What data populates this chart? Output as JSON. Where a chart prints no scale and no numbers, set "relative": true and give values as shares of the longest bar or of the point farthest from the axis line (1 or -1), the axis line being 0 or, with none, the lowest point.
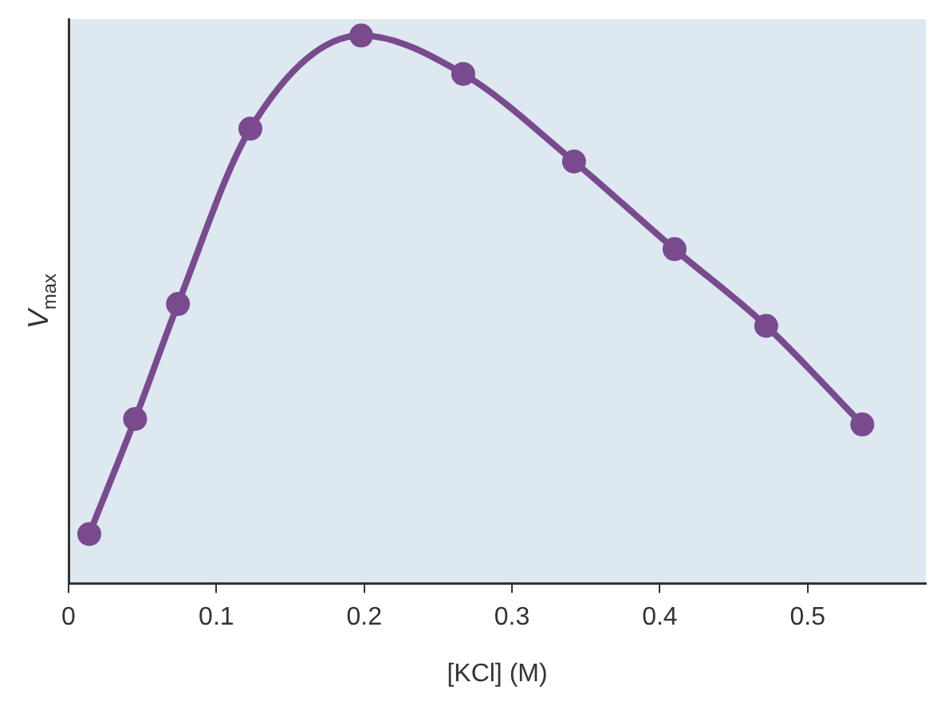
{
  "chart_data": {
    "type": "line",
    "xlabel": "[KCl] (M)",
    "ylabel": "V$_{max}$",
    "relative": true,
    "x": [
      0.014,
      0.045,
      0.074,
      0.123,
      0.198,
      0.267,
      0.342,
      0.41,
      0.472,
      0.537
    ],
    "series": [
      {
        "color": "#7a4a8e",
        "values": [
          0.09,
          0.3,
          0.51,
          0.83,
          1,
          0.93,
          0.77,
          0.61,
          0.47,
          0.29
        ]
      }
    ],
    "xlim": [
      0,
      0.58
    ],
    "xticks": [
      0,
      0.1,
      0.2,
      0.3,
      0.4,
      0.5
    ],
    "grid": false,
    "legend": false,
    "marker": "circle",
    "line_style": "solid"
  }
}
